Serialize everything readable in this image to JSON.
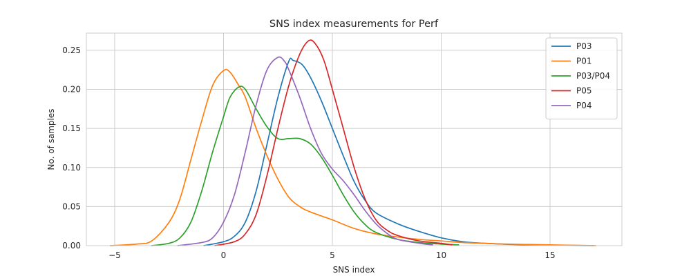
{
  "chart_data": {
    "type": "line",
    "title": "SNS index measurements for Perf",
    "xlabel": "SNS index",
    "ylabel": "No. of samples",
    "xlim": [
      -6.3,
      18.3
    ],
    "ylim": [
      0,
      0.272
    ],
    "xticks": [
      -5,
      0,
      5,
      10,
      15
    ],
    "xtick_labels": [
      "−5",
      "0",
      "5",
      "10",
      "15"
    ],
    "yticks": [
      0,
      0.05,
      0.1,
      0.15,
      0.2,
      0.25
    ],
    "ytick_labels": [
      "0.00",
      "0.05",
      "0.10",
      "0.15",
      "0.20",
      "0.25"
    ],
    "grid": true,
    "legend_position": "top-right",
    "series": [
      {
        "name": "P03",
        "color": "#1f77b4",
        "points": [
          [
            -0.9,
            0.0
          ],
          [
            0,
            0.005
          ],
          [
            0.5,
            0.012
          ],
          [
            1,
            0.03
          ],
          [
            1.5,
            0.07
          ],
          [
            2,
            0.13
          ],
          [
            2.5,
            0.19
          ],
          [
            3.0,
            0.236
          ],
          [
            3.2,
            0.237
          ],
          [
            3.6,
            0.232
          ],
          [
            4,
            0.215
          ],
          [
            4.5,
            0.185
          ],
          [
            5,
            0.15
          ],
          [
            5.5,
            0.115
          ],
          [
            6,
            0.082
          ],
          [
            6.5,
            0.058
          ],
          [
            7,
            0.042
          ],
          [
            8,
            0.028
          ],
          [
            9,
            0.018
          ],
          [
            10,
            0.01
          ],
          [
            11,
            0.005
          ],
          [
            12,
            0.003
          ],
          [
            14,
            0.001
          ],
          [
            17,
            0.0
          ]
        ]
      },
      {
        "name": "P01",
        "color": "#ff7f0e",
        "points": [
          [
            -5.2,
            0.0
          ],
          [
            -4,
            0.002
          ],
          [
            -3.3,
            0.006
          ],
          [
            -2.5,
            0.03
          ],
          [
            -2,
            0.06
          ],
          [
            -1.5,
            0.11
          ],
          [
            -1,
            0.16
          ],
          [
            -0.5,
            0.205
          ],
          [
            0,
            0.224
          ],
          [
            0.3,
            0.222
          ],
          [
            0.7,
            0.205
          ],
          [
            1,
            0.19
          ],
          [
            1.5,
            0.15
          ],
          [
            2,
            0.115
          ],
          [
            2.5,
            0.085
          ],
          [
            3,
            0.062
          ],
          [
            3.5,
            0.05
          ],
          [
            4,
            0.043
          ],
          [
            5,
            0.033
          ],
          [
            6,
            0.022
          ],
          [
            7,
            0.015
          ],
          [
            8,
            0.011
          ],
          [
            9,
            0.008
          ],
          [
            10,
            0.006
          ],
          [
            11,
            0.004
          ],
          [
            12,
            0.003
          ],
          [
            13,
            0.002
          ],
          [
            15,
            0.001
          ],
          [
            17.1,
            0.0
          ]
        ]
      },
      {
        "name": "P03/P04",
        "color": "#2ca02c",
        "points": [
          [
            -3.3,
            0.0
          ],
          [
            -2.5,
            0.003
          ],
          [
            -2,
            0.01
          ],
          [
            -1.5,
            0.03
          ],
          [
            -1,
            0.07
          ],
          [
            -0.5,
            0.12
          ],
          [
            0,
            0.165
          ],
          [
            0.3,
            0.19
          ],
          [
            0.7,
            0.203
          ],
          [
            1,
            0.2
          ],
          [
            1.5,
            0.175
          ],
          [
            2,
            0.152
          ],
          [
            2.5,
            0.137
          ],
          [
            3,
            0.137
          ],
          [
            3.5,
            0.137
          ],
          [
            4,
            0.13
          ],
          [
            4.5,
            0.113
          ],
          [
            5,
            0.09
          ],
          [
            5.5,
            0.065
          ],
          [
            6,
            0.043
          ],
          [
            6.5,
            0.027
          ],
          [
            7,
            0.017
          ],
          [
            8,
            0.008
          ],
          [
            9,
            0.004
          ],
          [
            10,
            0.002
          ],
          [
            10.8,
            0.001
          ]
        ]
      },
      {
        "name": "P05",
        "color": "#d62728",
        "points": [
          [
            -0.4,
            0.0
          ],
          [
            0.5,
            0.005
          ],
          [
            1,
            0.015
          ],
          [
            1.5,
            0.04
          ],
          [
            2,
            0.09
          ],
          [
            2.5,
            0.15
          ],
          [
            3,
            0.205
          ],
          [
            3.5,
            0.245
          ],
          [
            3.9,
            0.262
          ],
          [
            4.2,
            0.259
          ],
          [
            4.6,
            0.238
          ],
          [
            5,
            0.2
          ],
          [
            5.5,
            0.15
          ],
          [
            6,
            0.1
          ],
          [
            6.5,
            0.06
          ],
          [
            7,
            0.033
          ],
          [
            7.5,
            0.02
          ],
          [
            8,
            0.013
          ],
          [
            9,
            0.006
          ],
          [
            10,
            0.003
          ],
          [
            10.5,
            0.001
          ]
        ]
      },
      {
        "name": "P04",
        "color": "#9467bd",
        "points": [
          [
            -2.1,
            0.0
          ],
          [
            -1,
            0.004
          ],
          [
            -0.5,
            0.01
          ],
          [
            0,
            0.03
          ],
          [
            0.5,
            0.065
          ],
          [
            1,
            0.12
          ],
          [
            1.5,
            0.18
          ],
          [
            2,
            0.225
          ],
          [
            2.5,
            0.241
          ],
          [
            2.8,
            0.236
          ],
          [
            3,
            0.225
          ],
          [
            3.5,
            0.19
          ],
          [
            4,
            0.15
          ],
          [
            4.5,
            0.118
          ],
          [
            5,
            0.098
          ],
          [
            5.5,
            0.083
          ],
          [
            6,
            0.065
          ],
          [
            6.5,
            0.045
          ],
          [
            7,
            0.028
          ],
          [
            7.5,
            0.016
          ],
          [
            8,
            0.008
          ],
          [
            9,
            0.003
          ],
          [
            9.6,
            0.001
          ]
        ]
      }
    ]
  }
}
